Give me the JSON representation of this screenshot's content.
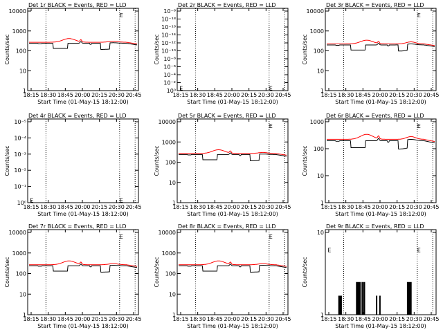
{
  "chart_data": [
    {
      "type": "line",
      "title": "Det 1r BLACK = Events, RED = LLD",
      "xlabel": "Start Time (01-May-15 18:12:00)",
      "ylabel": "Counts/sec",
      "scale": "log",
      "yticks": [
        "1",
        "10",
        "100",
        "1000",
        "10000"
      ],
      "ylim": [
        1,
        10000
      ],
      "xticks": [
        "18:15",
        "18:30",
        "18:45",
        "20:00",
        "20:15",
        "20:30",
        "20:45"
      ],
      "marks": [
        "E",
        "E"
      ],
      "profile": "full"
    },
    {
      "type": "line",
      "title": "Det 2r BLACK = Events, RED = LLD",
      "xlabel": "Start Time (01-May-15 18:12:00)",
      "ylabel": "Counts/sec",
      "scale": "log",
      "yticks": [
        "10⁰",
        "10⁻²",
        "10⁻⁴",
        "10⁻⁶",
        "10⁻⁸",
        "10⁻¹⁰",
        "10⁻¹²",
        "10⁻¹⁴",
        "10⁻¹⁶",
        "10⁻¹⁸",
        "10⁻⁶"
      ],
      "xticks": [
        "18:15",
        "18:30",
        "18:45",
        "20:00",
        "20:15",
        "20:30",
        "20:45"
      ],
      "marks": [
        "E",
        "E"
      ],
      "profile": "empty"
    },
    {
      "type": "line",
      "title": "Det 3r BLACK = Events, RED = LLD",
      "xlabel": "Start Time (01-May-15 18:12:00)",
      "ylabel": "Counts/sec",
      "scale": "log",
      "yticks": [
        "1",
        "10",
        "100",
        "1000",
        "10000"
      ],
      "ylim": [
        1,
        10000
      ],
      "xticks": [
        "18:15",
        "18:30",
        "18:45",
        "20:00",
        "20:15",
        "20:30",
        "20:45"
      ],
      "marks": [
        "E",
        "E"
      ],
      "profile": "high"
    },
    {
      "type": "line",
      "title": "Det 4r BLACK = Events, RED = LLD",
      "xlabel": "Start Time (01-May-15 18:12:00)",
      "ylabel": "Counts/sec",
      "scale": "log",
      "yticks": [
        "10⁰",
        "10⁻¹",
        "10⁻²",
        "10⁻³",
        "10⁻⁴",
        "10⁻⁵"
      ],
      "xticks": [
        "18:15",
        "18:30",
        "18:45",
        "20:00",
        "20:15",
        "20:30",
        "20:45"
      ],
      "marks": [
        "E",
        "E"
      ],
      "profile": "empty"
    },
    {
      "type": "line",
      "title": "Det 5r BLACK = Events, RED = LLD",
      "xlabel": "Start Time (01-May-15 18:12:00)",
      "ylabel": "Counts/sec",
      "scale": "log",
      "yticks": [
        "1",
        "10",
        "100",
        "1000",
        "10000"
      ],
      "ylim": [
        1,
        10000
      ],
      "xticks": [
        "18:15",
        "18:30",
        "18:45",
        "20:00",
        "20:15",
        "20:30",
        "20:45"
      ],
      "marks": [
        "E",
        "E"
      ],
      "profile": "full"
    },
    {
      "type": "line",
      "title": "Det 6r BLACK = Events, RED = LLD",
      "xlabel": "Start Time (01-May-15 18:12:00)",
      "ylabel": "Counts/sec",
      "scale": "log",
      "yticks": [
        "1",
        "10",
        "100",
        "1000"
      ],
      "ylim": [
        1,
        1000
      ],
      "xticks": [
        "18:15",
        "18:30",
        "18:45",
        "20:00",
        "20:15",
        "20:30",
        "20:45"
      ],
      "marks": [
        "E",
        "E"
      ],
      "profile": "high"
    },
    {
      "type": "line",
      "title": "Det 7r BLACK = Events, RED = LLD",
      "xlabel": "Start Time (01-May-15 18:12:00)",
      "ylabel": "Counts/sec",
      "scale": "log",
      "yticks": [
        "1",
        "10",
        "100",
        "1000",
        "10000"
      ],
      "ylim": [
        1,
        10000
      ],
      "xticks": [
        "18:15",
        "18:30",
        "18:45",
        "20:00",
        "20:15",
        "20:30",
        "20:45"
      ],
      "marks": [
        "E",
        "E"
      ],
      "profile": "full"
    },
    {
      "type": "line",
      "title": "Det 8r BLACK = Events, RED = LLD",
      "xlabel": "Start Time (01-May-15 18:12:00)",
      "ylabel": "Counts/sec",
      "scale": "log",
      "yticks": [
        "1",
        "10",
        "100",
        "1000",
        "10000"
      ],
      "ylim": [
        1,
        10000
      ],
      "xticks": [
        "18:15",
        "18:30",
        "18:45",
        "20:00",
        "20:15",
        "20:30",
        "20:45"
      ],
      "marks": [
        "E",
        "E"
      ],
      "profile": "full"
    },
    {
      "type": "line",
      "title": "Det 9r BLACK = Events, RED = LLD",
      "xlabel": "Start Time (01-May-15 18:12:00)",
      "ylabel": "Counts/sec",
      "scale": "log",
      "yticks": [
        "1",
        "10"
      ],
      "ylim": [
        1,
        10
      ],
      "xticks": [
        "18:15",
        "18:30",
        "18:45",
        "20:00",
        "20:15",
        "20:30",
        "20:45"
      ],
      "marks": [
        "E",
        "E"
      ],
      "profile": "spikes"
    }
  ],
  "colors": {
    "events": "#000000",
    "lld": "#ff0000",
    "axes": "#000000"
  }
}
